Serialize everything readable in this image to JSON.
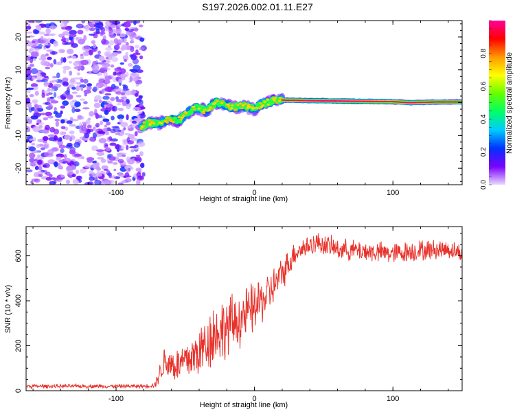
{
  "figure_title": "S197.2026.002.01.11.E27",
  "chart_data": [
    {
      "type": "heatmap",
      "title": "S197.2026.002.01.11.E27",
      "xlabel": "Height of straight line (km)",
      "ylabel": "Frequency (Hz)",
      "xlim": [
        -165,
        150
      ],
      "ylim": [
        -25,
        25
      ],
      "x_ticks": [
        -100,
        0,
        100
      ],
      "x_tick_labels": [
        "-100",
        "0",
        "100"
      ],
      "y_ticks": [
        -20,
        -10,
        0,
        10,
        20
      ],
      "y_tick_labels": [
        "-20",
        "-10",
        "0",
        "10",
        "20"
      ],
      "noise_region_x": [
        -165,
        -80
      ],
      "signal_track": [
        {
          "x": -82,
          "y": -7.5
        },
        {
          "x": -76,
          "y": -6
        },
        {
          "x": -70,
          "y": -6.5
        },
        {
          "x": -62,
          "y": -5
        },
        {
          "x": -55,
          "y": -5.5
        },
        {
          "x": -48,
          "y": -3
        },
        {
          "x": -42,
          "y": -1.5
        },
        {
          "x": -35,
          "y": -2.5
        },
        {
          "x": -28,
          "y": 0
        },
        {
          "x": -22,
          "y": -0.5
        },
        {
          "x": -15,
          "y": -1.5
        },
        {
          "x": -8,
          "y": -1
        },
        {
          "x": 0,
          "y": -2
        },
        {
          "x": 5,
          "y": -0.5
        },
        {
          "x": 12,
          "y": 0.5
        },
        {
          "x": 20,
          "y": 0.8
        },
        {
          "x": 40,
          "y": 0.6
        },
        {
          "x": 60,
          "y": 0.5
        },
        {
          "x": 80,
          "y": 0.4
        },
        {
          "x": 100,
          "y": 0.3
        },
        {
          "x": 112,
          "y": 0
        },
        {
          "x": 130,
          "y": 0.2
        },
        {
          "x": 150,
          "y": 0.2
        }
      ],
      "colorbar": {
        "label": "Normalized spectral amplitude",
        "range": [
          0,
          1
        ],
        "ticks": [
          0.0,
          0.2,
          0.4,
          0.6,
          0.8
        ],
        "tick_labels": [
          "0.0",
          "0.2",
          "0.4",
          "0.6",
          "0.8"
        ],
        "colors": [
          "#e8d8ff",
          "#7a00ff",
          "#0033ff",
          "#00ccff",
          "#00ff66",
          "#66ff00",
          "#ffff00",
          "#ff9900",
          "#ff0000",
          "#ff0099"
        ]
      }
    },
    {
      "type": "line",
      "xlabel": "Height of straight line (km)",
      "ylabel": "SNR (10 * v/v)",
      "xlim": [
        -165,
        150
      ],
      "ylim": [
        0,
        730
      ],
      "x_ticks": [
        -100,
        0,
        100
      ],
      "x_tick_labels": [
        "-100",
        "0",
        "100"
      ],
      "y_ticks": [
        0,
        200,
        400,
        600
      ],
      "y_tick_labels": [
        "0",
        "200",
        "400",
        "600"
      ],
      "line_color": "#e8322b",
      "envelope": [
        {
          "x": -165,
          "mean": 20,
          "amp": 8
        },
        {
          "x": -80,
          "mean": 20,
          "amp": 8
        },
        {
          "x": -72,
          "mean": 25,
          "amp": 12
        },
        {
          "x": -65,
          "mean": 130,
          "amp": 70
        },
        {
          "x": -55,
          "mean": 110,
          "amp": 80
        },
        {
          "x": -40,
          "mean": 170,
          "amp": 110
        },
        {
          "x": -30,
          "mean": 250,
          "amp": 140
        },
        {
          "x": -20,
          "mean": 280,
          "amp": 130
        },
        {
          "x": -10,
          "mean": 320,
          "amp": 120
        },
        {
          "x": 0,
          "mean": 370,
          "amp": 110
        },
        {
          "x": 10,
          "mean": 430,
          "amp": 90
        },
        {
          "x": 20,
          "mean": 520,
          "amp": 70
        },
        {
          "x": 30,
          "mean": 620,
          "amp": 50
        },
        {
          "x": 45,
          "mean": 660,
          "amp": 45
        },
        {
          "x": 60,
          "mean": 630,
          "amp": 45
        },
        {
          "x": 80,
          "mean": 620,
          "amp": 45
        },
        {
          "x": 100,
          "mean": 610,
          "amp": 45
        },
        {
          "x": 120,
          "mean": 625,
          "amp": 45
        },
        {
          "x": 140,
          "mean": 630,
          "amp": 40
        },
        {
          "x": 150,
          "mean": 610,
          "amp": 40
        }
      ]
    }
  ]
}
